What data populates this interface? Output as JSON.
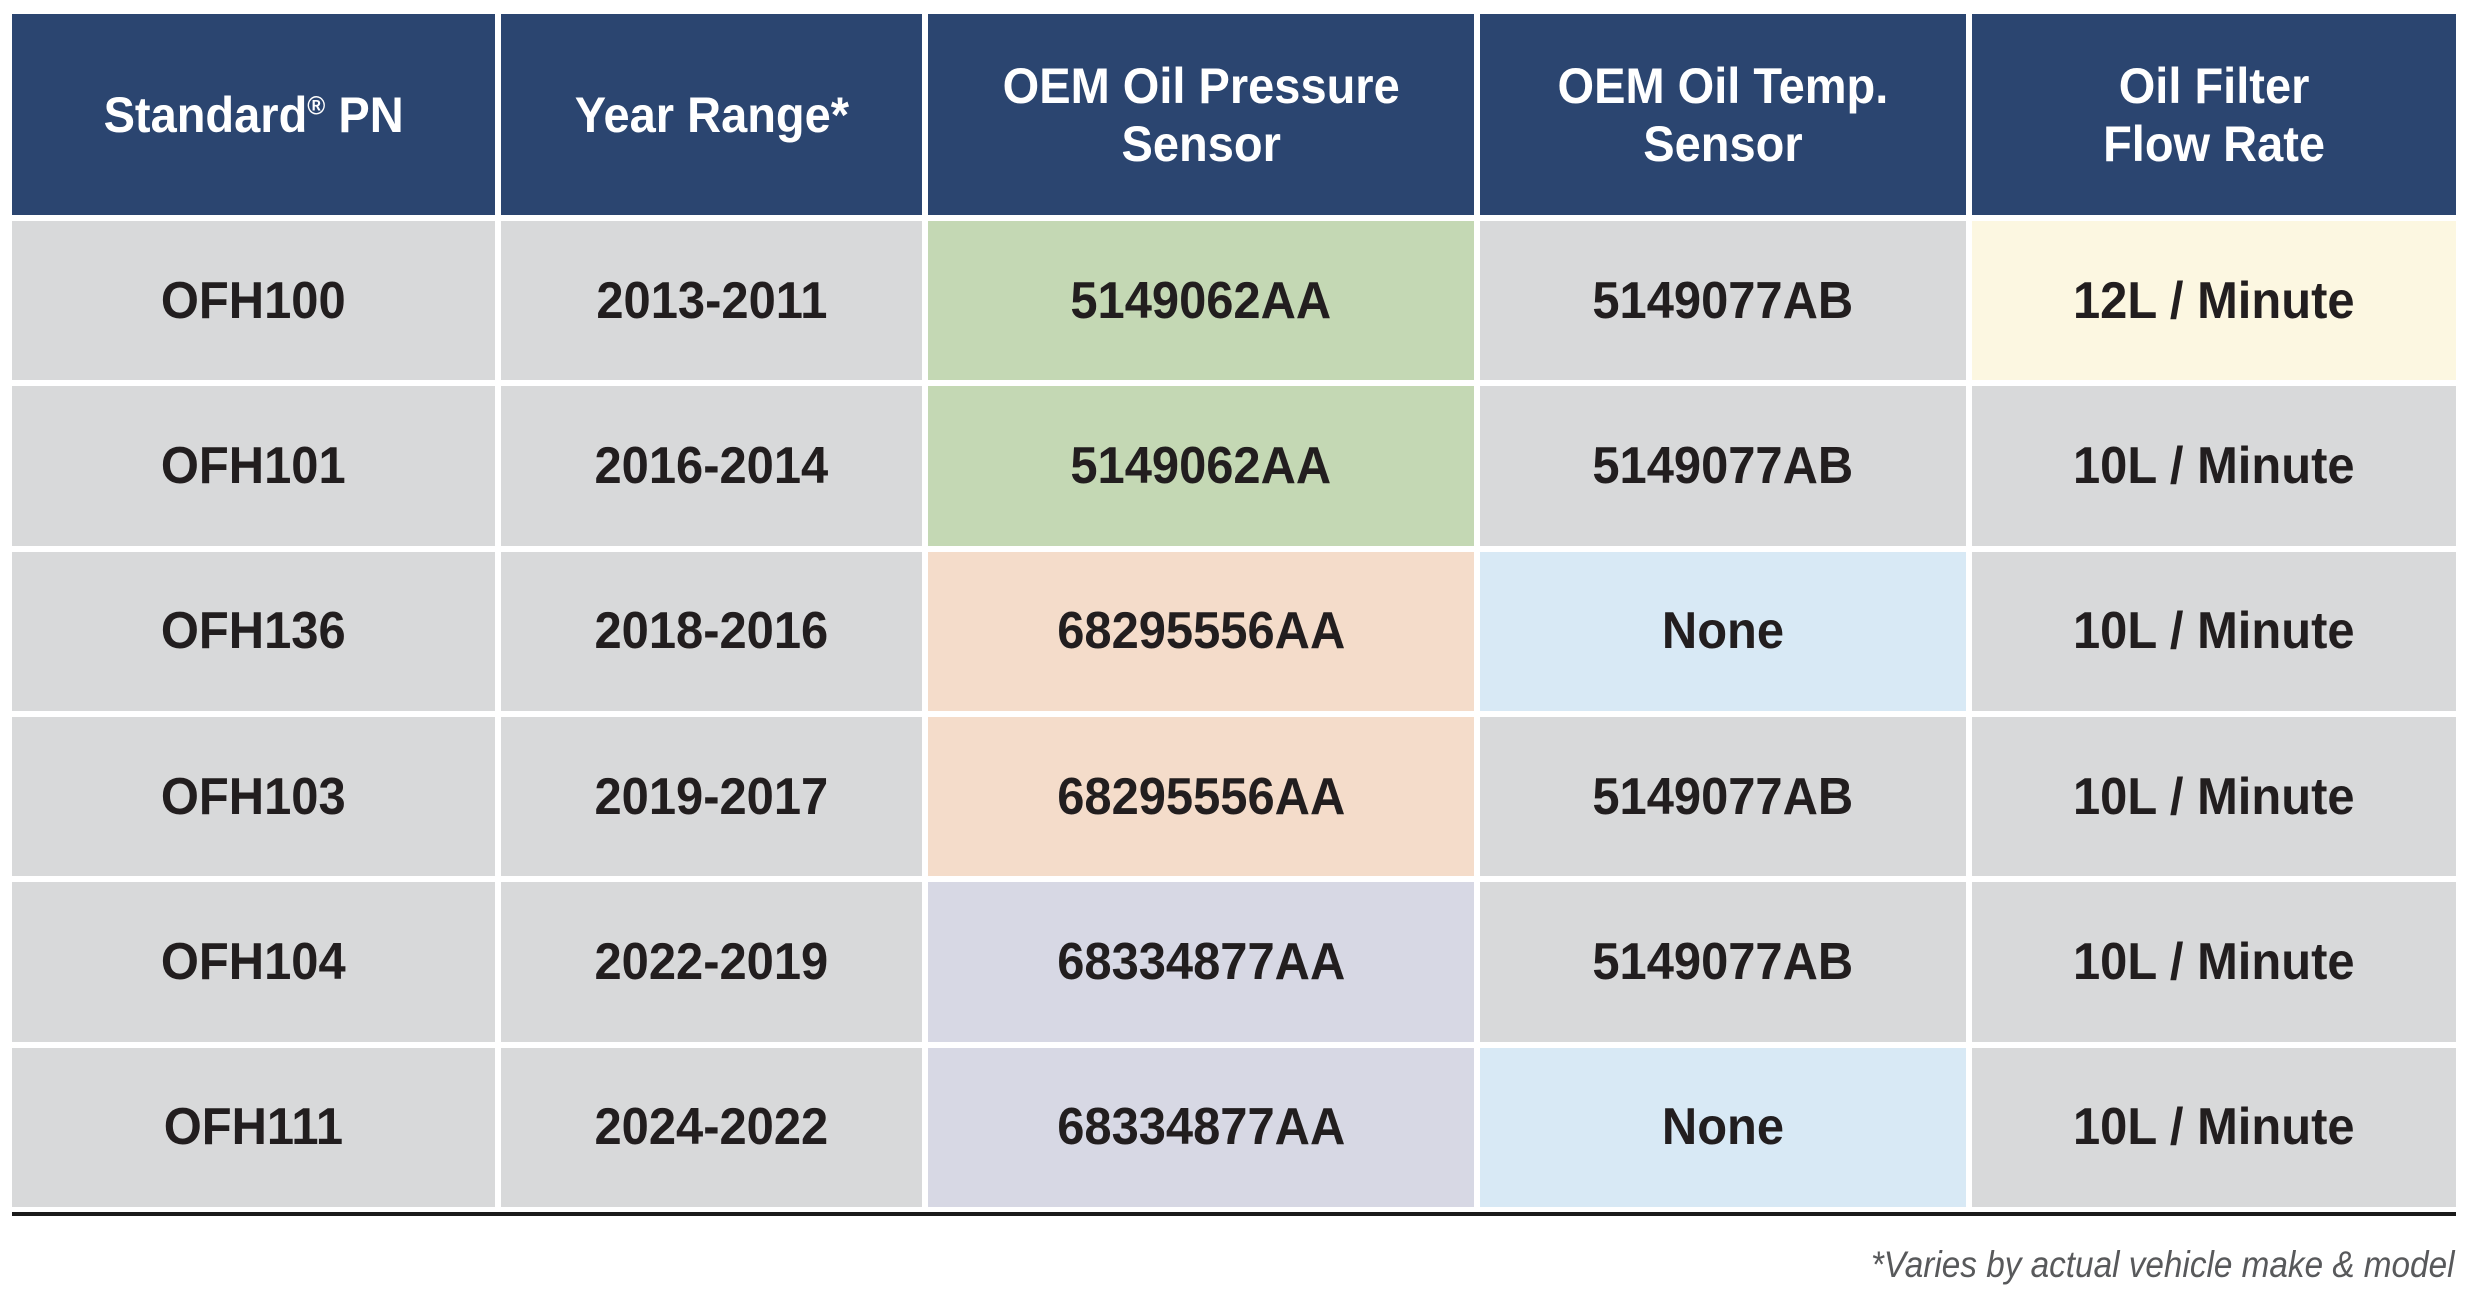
{
  "header": {
    "standard_pn": {
      "brand": "Standard",
      "reg_mark": "®",
      "suffix": " PN"
    },
    "year_range": "Year Range*",
    "oil_pressure": "OEM Oil Pressure\nSensor",
    "oil_temp": "OEM Oil Temp.\nSensor",
    "flow_rate": "Oil Filter\nFlow Rate"
  },
  "rows": [
    {
      "pn": "OFH100",
      "years": "2013-2011",
      "pressure": {
        "text": "5149062AA",
        "bg": "green"
      },
      "temp": {
        "text": "5149077AB",
        "bg": "gray"
      },
      "flow": {
        "text": "12L / Minute",
        "bg": "cream"
      }
    },
    {
      "pn": "OFH101",
      "years": "2016-2014",
      "pressure": {
        "text": "5149062AA",
        "bg": "green"
      },
      "temp": {
        "text": "5149077AB",
        "bg": "gray"
      },
      "flow": {
        "text": "10L / Minute",
        "bg": "gray"
      }
    },
    {
      "pn": "OFH136",
      "years": "2018-2016",
      "pressure": {
        "text": "68295556AA",
        "bg": "peach"
      },
      "temp": {
        "text": "None",
        "bg": "blue"
      },
      "flow": {
        "text": "10L / Minute",
        "bg": "gray"
      }
    },
    {
      "pn": "OFH103",
      "years": "2019-2017",
      "pressure": {
        "text": "68295556AA",
        "bg": "peach"
      },
      "temp": {
        "text": "5149077AB",
        "bg": "gray"
      },
      "flow": {
        "text": "10L / Minute",
        "bg": "gray"
      }
    },
    {
      "pn": "OFH104",
      "years": "2022-2019",
      "pressure": {
        "text": "68334877AA",
        "bg": "lavender"
      },
      "temp": {
        "text": "5149077AB",
        "bg": "gray"
      },
      "flow": {
        "text": "10L / Minute",
        "bg": "gray"
      }
    },
    {
      "pn": "OFH111",
      "years": "2024-2022",
      "pressure": {
        "text": "68334877AA",
        "bg": "lavender"
      },
      "temp": {
        "text": "None",
        "bg": "blue"
      },
      "flow": {
        "text": "10L / Minute",
        "bg": "gray"
      }
    }
  ],
  "footnote": "*Varies by actual vehicle make & model",
  "colors": {
    "header_bg": "#2b4570",
    "cell_gray": "#d8d9da",
    "green": "#c4d8b4",
    "peach": "#f4dcca",
    "lavender": "#d7d8e4",
    "blue": "#d8e9f5",
    "cream": "#fcf7e1",
    "text_dark": "#221e1f",
    "footnote_color": "#58595b",
    "rule_color": "#1a1a1a"
  },
  "chart_data": {
    "type": "table",
    "title": "",
    "columns": [
      "Standard® PN",
      "Year Range*",
      "OEM Oil Pressure Sensor",
      "OEM Oil Temp. Sensor",
      "Oil Filter Flow Rate"
    ],
    "rows": [
      [
        "OFH100",
        "2013-2011",
        "5149062AA",
        "5149077AB",
        "12L / Minute"
      ],
      [
        "OFH101",
        "2016-2014",
        "5149062AA",
        "5149077AB",
        "10L / Minute"
      ],
      [
        "OFH136",
        "2018-2016",
        "68295556AA",
        "None",
        "10L / Minute"
      ],
      [
        "OFH103",
        "2019-2017",
        "68295556AA",
        "5149077AB",
        "10L / Minute"
      ],
      [
        "OFH104",
        "2022-2019",
        "68334877AA",
        "5149077AB",
        "10L / Minute"
      ],
      [
        "OFH111",
        "2024-2022",
        "68334877AA",
        "None",
        "10L / Minute"
      ]
    ],
    "annotations": [
      "*Varies by actual vehicle make & model"
    ]
  }
}
